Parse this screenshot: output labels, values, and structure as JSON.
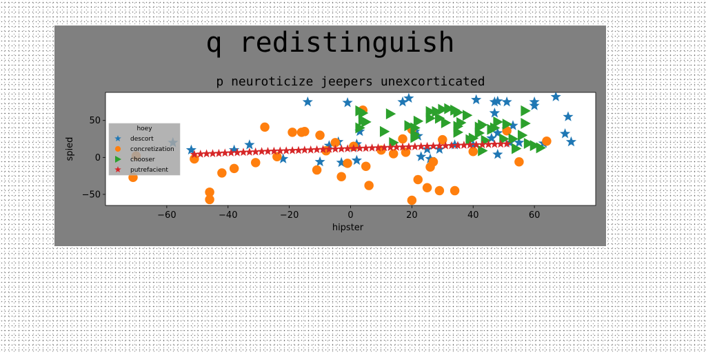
{
  "chart_data": {
    "type": "scatter",
    "suptitle": "q redistinguish",
    "title": "p neuroticize jeepers unexcorticated",
    "xlabel": "hipster",
    "ylabel": "spied",
    "xlim": [
      -80,
      80
    ],
    "ylim": [
      -65,
      88
    ],
    "xticks": [
      -60,
      -40,
      -20,
      0,
      20,
      40,
      60
    ],
    "yticks": [
      -50,
      0,
      50
    ],
    "grid": false,
    "legend": {
      "title": "hoey",
      "position": "center-left"
    },
    "series": [
      {
        "name": "descort",
        "marker": "star",
        "color": "#1f77b4",
        "points": [
          [
            -14,
            75
          ],
          [
            -1,
            74
          ],
          [
            17,
            75
          ],
          [
            19,
            80
          ],
          [
            41,
            78
          ],
          [
            47,
            75
          ],
          [
            47,
            60
          ],
          [
            48,
            76
          ],
          [
            51,
            75
          ],
          [
            60,
            70
          ],
          [
            60,
            75
          ],
          [
            67,
            82
          ],
          [
            71,
            55
          ],
          [
            70,
            32
          ],
          [
            72,
            21
          ],
          [
            63,
            19
          ],
          [
            55,
            20
          ],
          [
            52,
            20
          ],
          [
            46,
            26
          ],
          [
            48,
            33
          ],
          [
            51,
            38
          ],
          [
            53,
            43
          ],
          [
            48,
            4
          ],
          [
            40,
            17
          ],
          [
            34,
            17
          ],
          [
            29,
            11
          ],
          [
            25,
            11
          ],
          [
            23,
            1
          ],
          [
            26,
            -2
          ],
          [
            22,
            29
          ],
          [
            21,
            35
          ],
          [
            3,
            35
          ],
          [
            2,
            18
          ],
          [
            -4,
            21
          ],
          [
            -7,
            16
          ],
          [
            -10,
            -6
          ],
          [
            -3,
            -7
          ],
          [
            2,
            -4
          ],
          [
            -22,
            -2
          ],
          [
            -33,
            17
          ],
          [
            -38,
            10
          ],
          [
            -52,
            10
          ],
          [
            -58,
            20
          ],
          [
            1,
            14
          ]
        ]
      },
      {
        "name": "concretization",
        "marker": "circle",
        "color": "#ff7f0e",
        "points": [
          [
            -71,
            -27
          ],
          [
            -70,
            2
          ],
          [
            -51,
            -2
          ],
          [
            -46,
            -47
          ],
          [
            -46,
            -57
          ],
          [
            -42,
            -21
          ],
          [
            -38,
            -15
          ],
          [
            -31,
            -7
          ],
          [
            -28,
            41
          ],
          [
            -24,
            1
          ],
          [
            -19,
            34
          ],
          [
            -16,
            34
          ],
          [
            -15,
            35
          ],
          [
            -11,
            -17
          ],
          [
            -10,
            30
          ],
          [
            -3,
            -26
          ],
          [
            -1,
            -8
          ],
          [
            4,
            64
          ],
          [
            5,
            -12
          ],
          [
            6,
            -38
          ],
          [
            10,
            10
          ],
          [
            14,
            5
          ],
          [
            17,
            25
          ],
          [
            18,
            7
          ],
          [
            20,
            -58
          ],
          [
            22,
            -30
          ],
          [
            25,
            -41
          ],
          [
            26,
            -13
          ],
          [
            27,
            -6
          ],
          [
            29,
            -45
          ],
          [
            34,
            -45
          ],
          [
            20,
            38
          ],
          [
            40,
            8
          ],
          [
            51,
            36
          ],
          [
            55,
            -6
          ],
          [
            64,
            22
          ],
          [
            1,
            15
          ],
          [
            -5,
            20
          ],
          [
            30,
            24
          ],
          [
            -8,
            9
          ]
        ]
      },
      {
        "name": "chooser",
        "marker": "triangle-right",
        "color": "#2ca02c",
        "points": [
          [
            3,
            40
          ],
          [
            3,
            63
          ],
          [
            4,
            50
          ],
          [
            4,
            60
          ],
          [
            5,
            48
          ],
          [
            11,
            35
          ],
          [
            13,
            59
          ],
          [
            14,
            20
          ],
          [
            19,
            43
          ],
          [
            21,
            27
          ],
          [
            21,
            31
          ],
          [
            21,
            40
          ],
          [
            22,
            49
          ],
          [
            26,
            53
          ],
          [
            26,
            62
          ],
          [
            28,
            62
          ],
          [
            29,
            53
          ],
          [
            30,
            65
          ],
          [
            31,
            47
          ],
          [
            32,
            66
          ],
          [
            34,
            64
          ],
          [
            35,
            42
          ],
          [
            35,
            61
          ],
          [
            35,
            34
          ],
          [
            36,
            47
          ],
          [
            38,
            57
          ],
          [
            39,
            24
          ],
          [
            40,
            26
          ],
          [
            42,
            41
          ],
          [
            42,
            33
          ],
          [
            43,
            44
          ],
          [
            44,
            23
          ],
          [
            46,
            38
          ],
          [
            47,
            40
          ],
          [
            48,
            48
          ],
          [
            50,
            25
          ],
          [
            51,
            45
          ],
          [
            53,
            25
          ],
          [
            54,
            12
          ],
          [
            57,
            63
          ],
          [
            57,
            46
          ],
          [
            58,
            19
          ],
          [
            60,
            16
          ],
          [
            62,
            13
          ],
          [
            43,
            9
          ],
          [
            56,
            30
          ]
        ]
      },
      {
        "name": "putrefacient",
        "marker": "star",
        "color": "#d62728",
        "points": [
          [
            -51,
            4
          ],
          [
            -49,
            4.5
          ],
          [
            -47,
            5
          ],
          [
            -45,
            5.2
          ],
          [
            -43,
            5.5
          ],
          [
            -41,
            6
          ],
          [
            -39,
            6.2
          ],
          [
            -37,
            6.5
          ],
          [
            -35,
            7
          ],
          [
            -33,
            7.2
          ],
          [
            -31,
            7.5
          ],
          [
            -29,
            8
          ],
          [
            -27,
            8.2
          ],
          [
            -25,
            8.5
          ],
          [
            -23,
            8.8
          ],
          [
            -21,
            9
          ],
          [
            -19,
            9.3
          ],
          [
            -17,
            9.5
          ],
          [
            -15,
            10
          ],
          [
            -13,
            10.2
          ],
          [
            -11,
            10.5
          ],
          [
            -9,
            10.8
          ],
          [
            -7,
            11
          ],
          [
            -5,
            11.3
          ],
          [
            -3,
            11.5
          ],
          [
            -1,
            11.8
          ],
          [
            1,
            12
          ],
          [
            3,
            12.3
          ],
          [
            5,
            12.5
          ],
          [
            7,
            12.8
          ],
          [
            9,
            13
          ],
          [
            11,
            13.3
          ],
          [
            13,
            13.5
          ],
          [
            15,
            13.8
          ],
          [
            17,
            14
          ],
          [
            19,
            14.2
          ],
          [
            21,
            14.5
          ],
          [
            23,
            14.8
          ],
          [
            25,
            15
          ],
          [
            27,
            15.2
          ],
          [
            29,
            15.5
          ],
          [
            31,
            15.8
          ],
          [
            33,
            16
          ],
          [
            35,
            16.2
          ],
          [
            37,
            16.5
          ],
          [
            39,
            16.8
          ],
          [
            41,
            17
          ],
          [
            43,
            17.2
          ],
          [
            45,
            17.5
          ],
          [
            47,
            17.8
          ],
          [
            49,
            18
          ],
          [
            51,
            18.3
          ]
        ]
      }
    ]
  }
}
